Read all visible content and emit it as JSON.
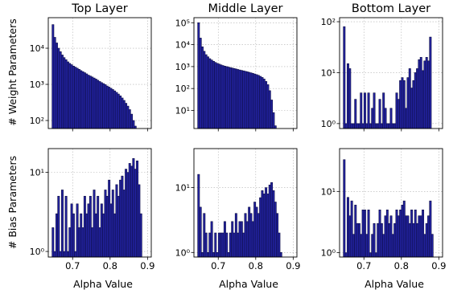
{
  "ylabels": {
    "weight": "# Weight Parameters",
    "bias": "# Bias Parameters"
  },
  "xlabel": "Alpha Value",
  "chart_data": [
    {
      "type": "bar",
      "title": "Top Layer",
      "row": "weight",
      "yscale": "log",
      "xlim": [
        0.635,
        0.91
      ],
      "ylim": [
        60,
        70000
      ],
      "xticks": [
        0.7,
        0.8,
        0.9
      ],
      "xtick_labels": [
        "0.7",
        "0.8",
        "0.9"
      ],
      "yticks": [
        100,
        1000,
        10000
      ],
      "ytick_labels": [
        "10²",
        "10³",
        "10⁴"
      ],
      "bin_start": 0.645,
      "bin_width": 0.005,
      "values": [
        45000,
        20000,
        14000,
        10000,
        8000,
        6500,
        5500,
        4800,
        4200,
        3800,
        3500,
        3200,
        3000,
        2800,
        2600,
        2400,
        2250,
        2100,
        1950,
        1800,
        1700,
        1600,
        1500,
        1400,
        1300,
        1200,
        1120,
        1050,
        980,
        900,
        840,
        780,
        720,
        660,
        600,
        540,
        480,
        420,
        360,
        300,
        250,
        200,
        150,
        100,
        70
      ]
    },
    {
      "type": "bar",
      "title": "Middle Layer",
      "row": "weight",
      "yscale": "log",
      "xlim": [
        0.635,
        0.91
      ],
      "ylim": [
        1.5,
        170000
      ],
      "xticks": [
        0.7,
        0.8,
        0.9
      ],
      "xtick_labels": [
        "0.7",
        "0.8",
        "0.9"
      ],
      "yticks": [
        10,
        100,
        1000,
        10000,
        100000
      ],
      "ytick_labels": [
        "10¹",
        "10²",
        "10³",
        "10⁴",
        "10⁵"
      ],
      "bin_start": 0.645,
      "bin_width": 0.005,
      "values": [
        100000,
        20000,
        8000,
        5000,
        3500,
        2800,
        2300,
        2000,
        1750,
        1550,
        1400,
        1300,
        1200,
        1120,
        1050,
        1000,
        950,
        900,
        860,
        820,
        780,
        740,
        700,
        670,
        640,
        610,
        580,
        550,
        520,
        490,
        460,
        430,
        400,
        360,
        320,
        270,
        210,
        150,
        80,
        30,
        8,
        2
      ]
    },
    {
      "type": "bar",
      "title": "Bottom Layer",
      "row": "weight",
      "yscale": "log",
      "xlim": [
        0.635,
        0.91
      ],
      "ylim": [
        0.8,
        120
      ],
      "xticks": [
        0.7,
        0.8,
        0.9
      ],
      "xtick_labels": [
        "0.7",
        "0.8",
        "0.9"
      ],
      "yticks": [
        1,
        10,
        100
      ],
      "ytick_labels": [
        "10⁰",
        "10¹",
        "10²"
      ],
      "bin_start": 0.645,
      "bin_width": 0.005,
      "values": [
        80,
        1,
        15,
        12,
        1,
        1,
        3,
        1,
        1,
        4,
        1,
        4,
        1,
        4,
        1,
        2,
        4,
        1,
        1,
        3,
        1,
        4,
        2,
        1,
        1,
        2,
        1,
        1,
        4,
        3,
        7,
        8,
        7,
        2,
        8,
        12,
        5,
        7,
        10,
        12,
        18,
        20,
        11,
        17,
        20,
        17,
        50
      ]
    },
    {
      "type": "bar",
      "row": "bias",
      "yscale": "log",
      "xlim": [
        0.635,
        0.91
      ],
      "ylim": [
        0.85,
        20
      ],
      "xticks": [
        0.7,
        0.8,
        0.9
      ],
      "xtick_labels": [
        "0.7",
        "0.8",
        "0.9"
      ],
      "yticks": [
        1,
        10
      ],
      "ytick_labels": [
        "10⁰",
        "10¹"
      ],
      "bin_start": 0.645,
      "bin_width": 0.005,
      "values": [
        2,
        1,
        3,
        5,
        1,
        6,
        1,
        5,
        1,
        2,
        4,
        3,
        1,
        4,
        2,
        3,
        2,
        5,
        3,
        4,
        5,
        2,
        6,
        3,
        5,
        2,
        4,
        3,
        6,
        5,
        8,
        4,
        6,
        3,
        7,
        5,
        8,
        9,
        6,
        11,
        10,
        13,
        12,
        15,
        11,
        14,
        7,
        3
      ]
    },
    {
      "type": "bar",
      "row": "bias",
      "yscale": "log",
      "xlim": [
        0.635,
        0.91
      ],
      "ylim": [
        0.85,
        40
      ],
      "xticks": [
        0.7,
        0.8,
        0.9
      ],
      "xtick_labels": [
        "0.7",
        "0.8",
        "0.9"
      ],
      "yticks": [
        1,
        10
      ],
      "ytick_labels": [
        "10⁰",
        "10¹"
      ],
      "bin_start": 0.645,
      "bin_width": 0.005,
      "values": [
        16,
        5,
        1,
        4,
        2,
        1,
        2,
        3,
        1,
        2,
        1,
        2,
        2,
        2,
        3,
        2,
        1,
        2,
        3,
        2,
        4,
        2,
        3,
        3,
        2,
        4,
        3,
        5,
        4,
        3,
        6,
        5,
        4,
        7,
        9,
        8,
        10,
        8,
        11,
        12,
        9,
        6,
        4,
        2,
        1
      ]
    },
    {
      "type": "bar",
      "row": "bias",
      "yscale": "log",
      "xlim": [
        0.635,
        0.91
      ],
      "ylim": [
        0.85,
        50
      ],
      "xticks": [
        0.7,
        0.8,
        0.9
      ],
      "xtick_labels": [
        "0.7",
        "0.8",
        "0.9"
      ],
      "yticks": [
        1,
        10
      ],
      "ytick_labels": [
        "10⁰",
        "10¹"
      ],
      "bin_start": 0.645,
      "bin_width": 0.005,
      "values": [
        33,
        1,
        8,
        4,
        7,
        2,
        6,
        3,
        3,
        2,
        5,
        5,
        2,
        5,
        1,
        2,
        3,
        1,
        3,
        5,
        3,
        2,
        4,
        5,
        3,
        4,
        2,
        3,
        5,
        4,
        5,
        6,
        7,
        4,
        4,
        3,
        5,
        3,
        5,
        3,
        4,
        4,
        5,
        2,
        3,
        4,
        7,
        2
      ]
    }
  ]
}
